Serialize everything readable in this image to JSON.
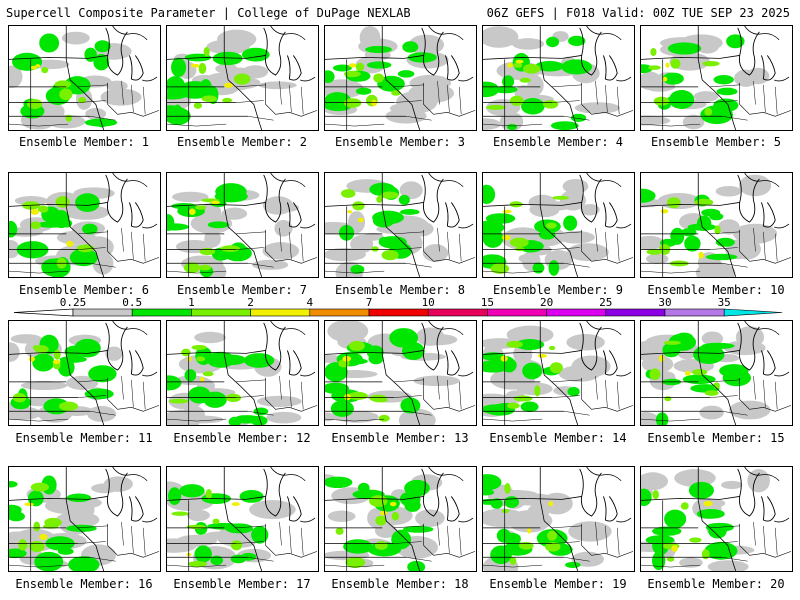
{
  "header": {
    "left": "Supercell Composite Parameter | College of DuPage NEXLAB",
    "right": "06Z GEFS | F018 Valid: 00Z TUE SEP 23 2025"
  },
  "colorbar": {
    "labels": [
      "0.25",
      "0.5",
      "1",
      "2",
      "4",
      "7",
      "10",
      "15",
      "20",
      "25",
      "30",
      "35"
    ],
    "colors": [
      "#c8c8c8",
      "#00e600",
      "#78f000",
      "#f0f000",
      "#f08c00",
      "#f00000",
      "#e6005a",
      "#f000b4",
      "#dc00f0",
      "#8c00e6",
      "#b478e6",
      "#00e6e6"
    ]
  },
  "members": [
    {
      "label": "Ensemble Member: 1"
    },
    {
      "label": "Ensemble Member: 2"
    },
    {
      "label": "Ensemble Member: 3"
    },
    {
      "label": "Ensemble Member: 4"
    },
    {
      "label": "Ensemble Member: 5"
    },
    {
      "label": "Ensemble Member: 6"
    },
    {
      "label": "Ensemble Member: 7"
    },
    {
      "label": "Ensemble Member: 8"
    },
    {
      "label": "Ensemble Member: 9"
    },
    {
      "label": "Ensemble Member: 10"
    },
    {
      "label": "Ensemble Member: 11"
    },
    {
      "label": "Ensemble Member: 12"
    },
    {
      "label": "Ensemble Member: 13"
    },
    {
      "label": "Ensemble Member: 14"
    },
    {
      "label": "Ensemble Member: 15"
    },
    {
      "label": "Ensemble Member: 16"
    },
    {
      "label": "Ensemble Member: 17"
    },
    {
      "label": "Ensemble Member: 18"
    },
    {
      "label": "Ensemble Member: 19"
    },
    {
      "label": "Ensemble Member: 20"
    }
  ]
}
